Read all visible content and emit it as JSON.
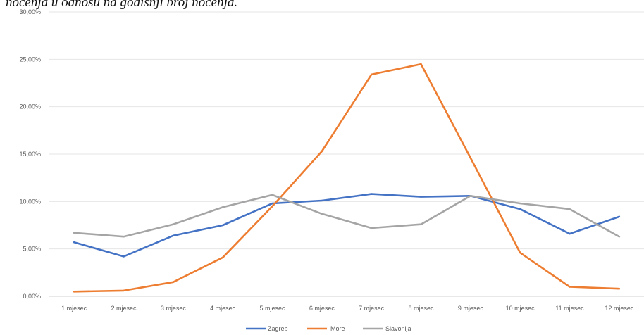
{
  "caption": "noćenja u odnosu na godišnji broj noćenja.",
  "chart_data": {
    "type": "line",
    "categories": [
      "1 mjesec",
      "2 mjesec",
      "3 mjesec",
      "4 mjesec",
      "5 mjesec",
      "6 mjesec",
      "7 mjesec",
      "8 mjesec",
      "9 mjesec",
      "10 mjesec",
      "11 mjesec",
      "12 mjesec"
    ],
    "y_ticks": [
      "0,00%",
      "5,00%",
      "10,00%",
      "15,00%",
      "20,00%",
      "25,00%",
      "30,00%"
    ],
    "ylim": [
      0,
      30
    ],
    "y_unit": "%",
    "grid": true,
    "legend_position": "bottom",
    "series": [
      {
        "name": "Zagreb",
        "color": "#4472c4",
        "values": [
          5.7,
          4.2,
          6.4,
          7.5,
          9.8,
          10.1,
          10.8,
          10.5,
          10.6,
          9.2,
          6.6,
          8.4
        ]
      },
      {
        "name": "More",
        "color": "#ed7d31",
        "values": [
          0.5,
          0.6,
          1.5,
          4.1,
          9.5,
          15.3,
          23.4,
          24.5,
          14.6,
          4.6,
          1.0,
          0.8
        ]
      },
      {
        "name": "Slavonija",
        "color": "#a5a5a5",
        "values": [
          6.7,
          6.3,
          7.6,
          9.4,
          10.7,
          8.7,
          7.2,
          7.6,
          10.6,
          9.8,
          9.2,
          6.3
        ]
      }
    ]
  }
}
